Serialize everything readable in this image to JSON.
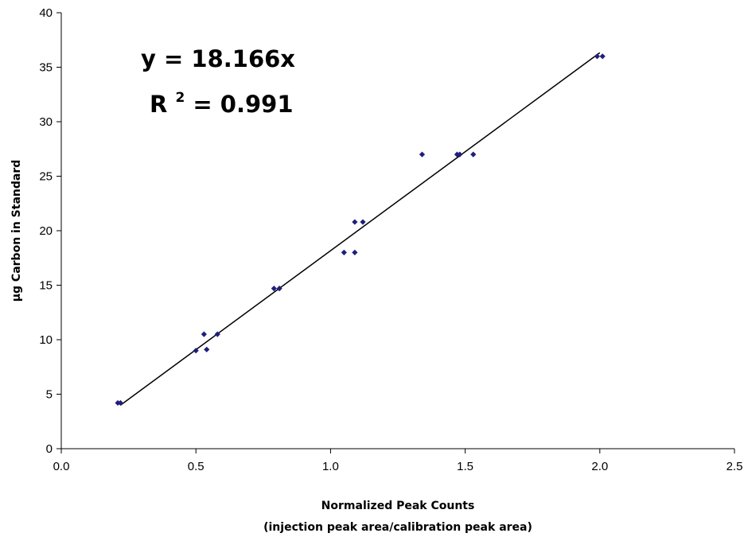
{
  "chart_data": {
    "type": "scatter",
    "title": "",
    "xlabel": "Normalized Peak Counts",
    "xlabel_line2": "(injection peak area/calibration peak area)",
    "ylabel": "µg Carbon in Standard",
    "xlim": [
      0,
      2.5
    ],
    "ylim": [
      0,
      40
    ],
    "x_ticks": [
      "0.0",
      "0.5",
      "1.0",
      "1.5",
      "2.0",
      "2.5"
    ],
    "y_ticks": [
      "0",
      "5",
      "10",
      "15",
      "20",
      "25",
      "30",
      "35",
      "40"
    ],
    "grid": false,
    "legend": "none",
    "marker_color": "#1f1f7a",
    "line_color": "#000000",
    "series": [
      {
        "points": [
          {
            "x": 0.21,
            "y": 4.2
          },
          {
            "x": 0.22,
            "y": 4.2
          },
          {
            "x": 0.5,
            "y": 9.0
          },
          {
            "x": 0.54,
            "y": 9.1
          },
          {
            "x": 0.53,
            "y": 10.5
          },
          {
            "x": 0.58,
            "y": 10.5
          },
          {
            "x": 0.79,
            "y": 14.7
          },
          {
            "x": 0.81,
            "y": 14.7
          },
          {
            "x": 1.05,
            "y": 18.0
          },
          {
            "x": 1.09,
            "y": 18.0
          },
          {
            "x": 1.09,
            "y": 20.8
          },
          {
            "x": 1.12,
            "y": 20.8
          },
          {
            "x": 1.34,
            "y": 27.0
          },
          {
            "x": 1.47,
            "y": 27.0
          },
          {
            "x": 1.48,
            "y": 27.0
          },
          {
            "x": 1.53,
            "y": 27.0
          },
          {
            "x": 1.99,
            "y": 36.0
          },
          {
            "x": 2.01,
            "y": 36.0
          }
        ]
      }
    ],
    "trendline": {
      "type": "linear",
      "slope": 18.166,
      "x_range": [
        0.22,
        2.0
      ]
    },
    "annotations": {
      "equation": "y = 18.166x",
      "r_squared_prefix": "R",
      "r_squared_sup": "2",
      "r_squared_suffix": " = 0.991"
    }
  }
}
